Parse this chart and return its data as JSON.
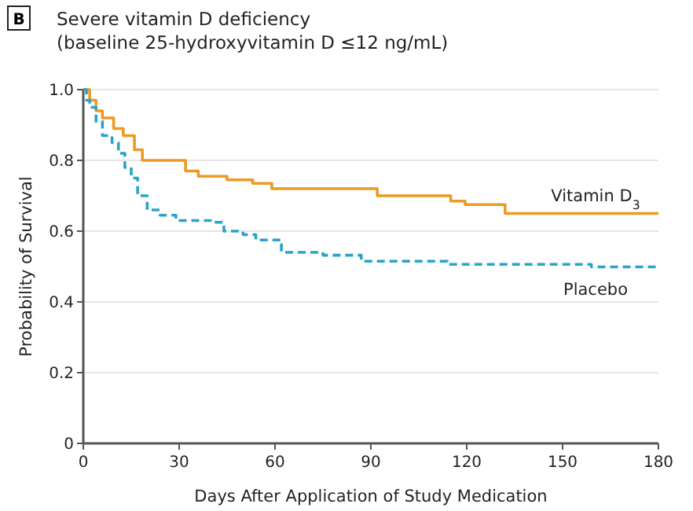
{
  "chart_data": {
    "type": "step",
    "title": "Severe vitamin D deficiency",
    "subtitle": "(baseline 25-hydroxyvitamin D ≤12 ng/mL)",
    "annotations": [
      "B"
    ],
    "xlabel": "Days After Application of Study Medication",
    "ylabel": "Probability of Survival",
    "xlim": [
      0,
      180
    ],
    "xticks": [
      0,
      30,
      60,
      90,
      120,
      150,
      180
    ],
    "ylim": [
      0,
      1
    ],
    "yticks": [
      {
        "value": 0,
        "label": "0"
      },
      0.2,
      0.4,
      0.6,
      0.8,
      {
        "value": 1,
        "label": "1.0"
      }
    ],
    "grid": "y",
    "series": [
      {
        "name": "Vitamin D$_{3}$",
        "color": "#eb9a24",
        "line_style": "solid",
        "x": [
          0,
          2,
          4,
          6,
          9.5,
          12.5,
          16,
          18.5,
          30,
          32,
          36,
          45,
          53,
          59,
          92,
          115,
          119.5,
          132,
          180
        ],
        "values": [
          1,
          0.97,
          0.94,
          0.92,
          0.89,
          0.87,
          0.83,
          0.8,
          0.8,
          0.77,
          0.755,
          0.745,
          0.735,
          0.72,
          0.7,
          0.685,
          0.675,
          0.65,
          0.65
        ]
      },
      {
        "name": "Placebo",
        "color": "#2aa3c8",
        "line_style": "dashed",
        "x": [
          0,
          1,
          2,
          4,
          6,
          9,
          11,
          13,
          15,
          17,
          20,
          24,
          29,
          41,
          44,
          50,
          54,
          62,
          75,
          87,
          114,
          159,
          180
        ],
        "values": [
          1,
          0.97,
          0.95,
          0.91,
          0.87,
          0.85,
          0.82,
          0.78,
          0.75,
          0.7,
          0.66,
          0.645,
          0.63,
          0.625,
          0.6,
          0.59,
          0.575,
          0.54,
          0.532,
          0.515,
          0.506,
          0.499,
          0.499
        ]
      }
    ]
  }
}
